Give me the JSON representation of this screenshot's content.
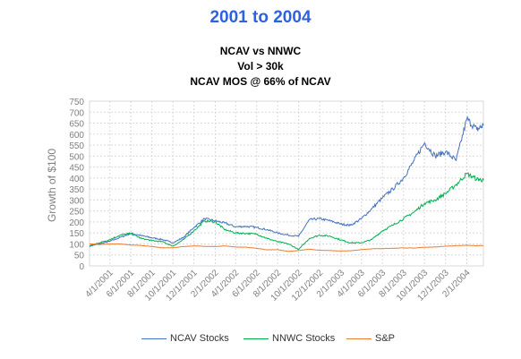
{
  "heading": {
    "main": "2001 to 2004",
    "line1": "NCAV vs NNWC",
    "line2": "Vol > 30k",
    "line3": "NCAV MOS @ 66% of NCAV"
  },
  "colors": {
    "main_title": "#2E61E0",
    "grid": "#d9d9d9",
    "axis_text": "#7f7f7f"
  },
  "chart_data": {
    "type": "line",
    "title": "",
    "xlabel": "",
    "ylabel": "Growth of $100",
    "ylim": [
      0,
      750
    ],
    "yticks": [
      0,
      50,
      100,
      150,
      200,
      250,
      300,
      350,
      400,
      450,
      500,
      550,
      600,
      650,
      700,
      750
    ],
    "x_range": [
      "2/1/2001",
      "3/20/2004"
    ],
    "xtick_labels": [
      "4/1/2001",
      "6/1/2001",
      "8/1/2001",
      "10/1/2001",
      "12/1/2001",
      "2/1/2002",
      "4/1/2002",
      "6/1/2002",
      "8/1/2002",
      "10/1/2002",
      "12/1/2002",
      "2/1/2003",
      "4/1/2003",
      "6/1/2003",
      "8/1/2003",
      "10/1/2003",
      "12/1/2003",
      "2/1/2004"
    ],
    "grid": true,
    "legend_position": "bottom",
    "series": [
      {
        "name": "NCAV Stocks",
        "color": "#4472C4",
        "points": [
          [
            "2/1/2001",
            90
          ],
          [
            "3/1/2001",
            100
          ],
          [
            "4/1/2001",
            112
          ],
          [
            "5/1/2001",
            130
          ],
          [
            "6/1/2001",
            148
          ],
          [
            "7/1/2001",
            138
          ],
          [
            "8/1/2001",
            128
          ],
          [
            "9/1/2001",
            120
          ],
          [
            "10/1/2001",
            105
          ],
          [
            "11/1/2001",
            130
          ],
          [
            "12/1/2001",
            175
          ],
          [
            "1/1/2002",
            215
          ],
          [
            "2/1/2002",
            205
          ],
          [
            "3/1/2002",
            195
          ],
          [
            "4/1/2002",
            178
          ],
          [
            "5/1/2002",
            180
          ],
          [
            "6/1/2002",
            175
          ],
          [
            "7/1/2002",
            165
          ],
          [
            "8/1/2002",
            150
          ],
          [
            "9/1/2002",
            140
          ],
          [
            "10/1/2002",
            135
          ],
          [
            "11/1/2002",
            210
          ],
          [
            "12/1/2002",
            215
          ],
          [
            "1/1/2003",
            205
          ],
          [
            "2/1/2003",
            190
          ],
          [
            "3/1/2003",
            185
          ],
          [
            "4/1/2003",
            215
          ],
          [
            "5/1/2003",
            260
          ],
          [
            "6/1/2003",
            310
          ],
          [
            "7/1/2003",
            350
          ],
          [
            "8/1/2003",
            400
          ],
          [
            "9/1/2003",
            480
          ],
          [
            "10/1/2003",
            560
          ],
          [
            "11/1/2003",
            500
          ],
          [
            "12/1/2003",
            520
          ],
          [
            "1/1/2004",
            480
          ],
          [
            "2/1/2004",
            670
          ],
          [
            "3/1/2004",
            620
          ],
          [
            "3/20/2004",
            640
          ]
        ]
      },
      {
        "name": "NNWC Stocks",
        "color": "#00B050",
        "points": [
          [
            "2/1/2001",
            92
          ],
          [
            "3/1/2001",
            105
          ],
          [
            "4/1/2001",
            120
          ],
          [
            "5/1/2001",
            140
          ],
          [
            "6/1/2001",
            148
          ],
          [
            "7/1/2001",
            125
          ],
          [
            "8/1/2001",
            115
          ],
          [
            "9/1/2001",
            110
          ],
          [
            "10/1/2001",
            90
          ],
          [
            "11/1/2001",
            120
          ],
          [
            "12/1/2001",
            160
          ],
          [
            "1/1/2002",
            205
          ],
          [
            "2/1/2002",
            200
          ],
          [
            "3/1/2002",
            165
          ],
          [
            "4/1/2002",
            150
          ],
          [
            "5/1/2002",
            148
          ],
          [
            "6/1/2002",
            145
          ],
          [
            "7/1/2002",
            125
          ],
          [
            "8/1/2002",
            110
          ],
          [
            "9/1/2002",
            100
          ],
          [
            "10/1/2002",
            75
          ],
          [
            "11/1/2002",
            125
          ],
          [
            "12/1/2002",
            140
          ],
          [
            "1/1/2003",
            135
          ],
          [
            "2/1/2003",
            118
          ],
          [
            "3/1/2003",
            105
          ],
          [
            "4/1/2003",
            105
          ],
          [
            "5/1/2003",
            120
          ],
          [
            "6/1/2003",
            160
          ],
          [
            "7/1/2003",
            185
          ],
          [
            "8/1/2003",
            215
          ],
          [
            "9/1/2003",
            245
          ],
          [
            "10/1/2003",
            285
          ],
          [
            "11/1/2003",
            300
          ],
          [
            "12/1/2003",
            330
          ],
          [
            "1/1/2004",
            370
          ],
          [
            "2/1/2004",
            420
          ],
          [
            "3/1/2004",
            395
          ],
          [
            "3/20/2004",
            390
          ]
        ]
      },
      {
        "name": "S&P",
        "color": "#ED7D31",
        "points": [
          [
            "2/1/2001",
            100
          ],
          [
            "3/1/2001",
            97
          ],
          [
            "4/1/2001",
            100
          ],
          [
            "5/1/2001",
            100
          ],
          [
            "6/1/2001",
            95
          ],
          [
            "7/1/2001",
            93
          ],
          [
            "8/1/2001",
            88
          ],
          [
            "9/1/2001",
            82
          ],
          [
            "10/1/2001",
            83
          ],
          [
            "11/1/2001",
            88
          ],
          [
            "12/1/2001",
            91
          ],
          [
            "1/1/2002",
            89
          ],
          [
            "2/1/2002",
            88
          ],
          [
            "3/1/2002",
            91
          ],
          [
            "4/1/2002",
            86
          ],
          [
            "5/1/2002",
            85
          ],
          [
            "6/1/2002",
            80
          ],
          [
            "7/1/2002",
            73
          ],
          [
            "8/1/2002",
            74
          ],
          [
            "9/1/2002",
            66
          ],
          [
            "10/1/2002",
            70
          ],
          [
            "11/1/2002",
            76
          ],
          [
            "12/1/2002",
            71
          ],
          [
            "1/1/2003",
            70
          ],
          [
            "2/1/2003",
            68
          ],
          [
            "3/1/2003",
            69
          ],
          [
            "4/1/2003",
            74
          ],
          [
            "5/1/2003",
            78
          ],
          [
            "6/1/2003",
            79
          ],
          [
            "7/1/2003",
            80
          ],
          [
            "8/1/2003",
            82
          ],
          [
            "9/1/2003",
            81
          ],
          [
            "10/1/2003",
            85
          ],
          [
            "11/1/2003",
            86
          ],
          [
            "12/1/2003",
            90
          ],
          [
            "1/1/2004",
            92
          ],
          [
            "2/1/2004",
            94
          ],
          [
            "3/1/2004",
            92
          ],
          [
            "3/20/2004",
            92
          ]
        ]
      }
    ]
  }
}
